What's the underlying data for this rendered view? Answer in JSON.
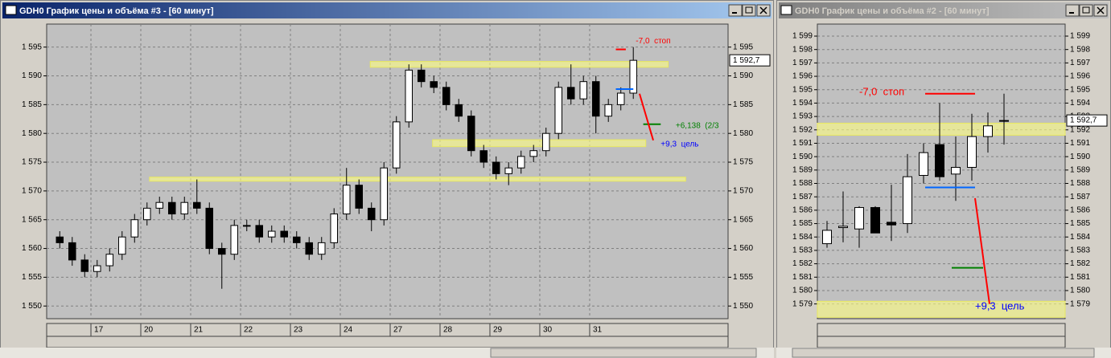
{
  "windows": [
    {
      "title": "GDH0 График цены и объёма #3 - [60 минут]",
      "chart_data": {
        "type": "candlestick",
        "open": [
          1562,
          1561,
          1558,
          1556,
          1557,
          1559,
          1562,
          1565,
          1567,
          1568,
          1566,
          1568,
          1567,
          1560,
          1559,
          1564,
          1564,
          1562,
          1563,
          1562,
          1561,
          1559,
          1561,
          1566,
          1571,
          1567,
          1565,
          1574,
          1582,
          1591,
          1589,
          1588,
          1585,
          1583,
          1577,
          1575,
          1573,
          1574,
          1576,
          1577,
          1580,
          1588,
          1586,
          1589,
          1583,
          1585,
          1587
        ],
        "high": [
          1563,
          1562,
          1559,
          1558,
          1560,
          1563,
          1566,
          1568,
          1569,
          1569,
          1569,
          1572,
          1568,
          1561,
          1565,
          1565,
          1565,
          1564,
          1564,
          1563,
          1562,
          1562,
          1567,
          1574,
          1572,
          1568,
          1575,
          1583,
          1592,
          1592,
          1590,
          1589,
          1586,
          1584,
          1578,
          1576,
          1575,
          1577,
          1578,
          1581,
          1589,
          1592,
          1590,
          1590,
          1586,
          1588,
          1595
        ],
        "low": [
          1560,
          1557,
          1555,
          1555,
          1556,
          1558,
          1561,
          1564,
          1566,
          1565,
          1565,
          1566,
          1559,
          1553,
          1558,
          1563,
          1561,
          1561,
          1561,
          1560,
          1558,
          1558,
          1560,
          1565,
          1566,
          1563,
          1564,
          1573,
          1581,
          1588,
          1587,
          1584,
          1582,
          1576,
          1574,
          1572,
          1571,
          1573,
          1575,
          1576,
          1579,
          1585,
          1585,
          1580,
          1582,
          1584,
          1586
        ],
        "close": [
          1561,
          1558,
          1556,
          1557,
          1559,
          1562,
          1565,
          1567,
          1568,
          1566,
          1568,
          1567,
          1560,
          1559,
          1564,
          1564,
          1562,
          1563,
          1562,
          1561,
          1559,
          1561,
          1566,
          1571,
          1567,
          1565,
          1574,
          1582,
          1591,
          1589,
          1588,
          1585,
          1583,
          1577,
          1575,
          1573,
          1574,
          1576,
          1577,
          1580,
          1588,
          1586,
          1589,
          1583,
          1585,
          1587,
          1592.7
        ],
        "xlim": [
          -0.55,
          54.1
        ],
        "ylim": [
          1547.8,
          1599
        ],
        "xticks": [
          {
            "value": 3,
            "label": "17"
          },
          {
            "value": 7,
            "label": "20"
          },
          {
            "value": 11,
            "label": "21"
          },
          {
            "value": 15,
            "label": "22"
          },
          {
            "value": 19,
            "label": "23"
          },
          {
            "value": 23,
            "label": "24"
          },
          {
            "value": 27,
            "label": "27"
          },
          {
            "value": 31,
            "label": "28"
          },
          {
            "value": 35,
            "label": "29"
          },
          {
            "value": 39,
            "label": "30"
          },
          {
            "value": 43,
            "label": "31"
          }
        ],
        "yticks": [
          {
            "value": 1550,
            "label": "1 550"
          },
          {
            "value": 1555,
            "label": "1 555"
          },
          {
            "value": 1560,
            "label": "1 560"
          },
          {
            "value": 1565,
            "label": "1 565"
          },
          {
            "value": 1570,
            "label": "1 570"
          },
          {
            "value": 1575,
            "label": "1 575"
          },
          {
            "value": 1580,
            "label": "1 580"
          },
          {
            "value": 1585,
            "label": "1 585"
          },
          {
            "value": 1590,
            "label": "1 590"
          },
          {
            "value": 1595,
            "label": "1 595"
          }
        ],
        "grid": true,
        "up_color": "#ffffff",
        "down_color": "#000000",
        "zone_color": "#ffff80",
        "last": {
          "value": 1592.7,
          "label": "1 592,7"
        },
        "zones": [
          {
            "x": [
              25.4,
              49.3
            ],
            "y": [
              1591.5,
              1592.5
            ]
          },
          {
            "x": [
              30.4,
              47.5
            ],
            "y": [
              1577.7,
              1578.9
            ]
          },
          {
            "x": [
              7.7,
              50.7
            ],
            "y": [
              1571.7,
              1572.4
            ]
          }
        ],
        "levels": [
          {
            "x": [
              45.1,
              45.9
            ],
            "y": 1594.6,
            "color": "#ff0000"
          },
          {
            "x": [
              45.1,
              46.5
            ],
            "y": 1587.7,
            "color": "#0066ff"
          },
          {
            "x": [
              47.3,
              48.7
            ],
            "y": 1581.6,
            "color": "#008000"
          }
        ],
        "segments": [
          {
            "x": [
              47.0,
              48.1
            ],
            "y": [
              1586.9,
              1578.8
            ],
            "color": "#ff0000"
          }
        ],
        "annotations": [
          {
            "text": "-7,0  стоп",
            "x": 46.7,
            "y": 1596,
            "color": "#ff0000"
          },
          {
            "text": "+6,138  (2/3",
            "x": 49.9,
            "y": 1581.3,
            "color": "#008000"
          },
          {
            "text": "+9,3  цель",
            "x": 48.7,
            "y": 1578.1,
            "color": "#0000ff"
          }
        ]
      }
    },
    {
      "title": "GDH0 График цены и объёма #2 - [60 минут]",
      "chart_data": {
        "type": "candlestick",
        "open": [
          1583.5,
          1584.7,
          1584.6,
          1586.2,
          1585.1,
          1585,
          1588.6,
          1590.9,
          1588.7,
          1589.2,
          1591.5,
          1592.7
        ],
        "high": [
          1585.2,
          1587.4,
          1586.3,
          1586.3,
          1587.9,
          1590.2,
          1591,
          1594,
          1591.5,
          1593.2,
          1593.3,
          1594.7
        ],
        "low": [
          1583.2,
          1583.6,
          1583.2,
          1584.3,
          1583.7,
          1584.3,
          1588,
          1588.2,
          1586.7,
          1588.2,
          1590.3,
          1590.9
        ],
        "close": [
          1584.5,
          1584.8,
          1586.2,
          1584.3,
          1584.9,
          1588.5,
          1590.3,
          1588.5,
          1589.2,
          1591.5,
          1592.3,
          1592.7
        ],
        "xlim": [
          -0.1,
          15.3
        ],
        "ylim": [
          1577.9,
          1599.9
        ],
        "yticks": [
          {
            "value": 1579,
            "label": "1 579"
          },
          {
            "value": 1580,
            "label": "1 580"
          },
          {
            "value": 1581,
            "label": "1 581"
          },
          {
            "value": 1582,
            "label": "1 582"
          },
          {
            "value": 1583,
            "label": "1 583"
          },
          {
            "value": 1584,
            "label": "1 584"
          },
          {
            "value": 1585,
            "label": "1 585"
          },
          {
            "value": 1586,
            "label": "1 586"
          },
          {
            "value": 1587,
            "label": "1 587"
          },
          {
            "value": 1588,
            "label": "1 588"
          },
          {
            "value": 1589,
            "label": "1 589"
          },
          {
            "value": 1590,
            "label": "1 590"
          },
          {
            "value": 1591,
            "label": "1 591"
          },
          {
            "value": 1592,
            "label": "1 592"
          },
          {
            "value": 1593,
            "label": "1 593"
          },
          {
            "value": 1594,
            "label": "1 594"
          },
          {
            "value": 1595,
            "label": "1 595"
          },
          {
            "value": 1596,
            "label": "1 596"
          },
          {
            "value": 1597,
            "label": "1 597"
          },
          {
            "value": 1598,
            "label": "1 598"
          },
          {
            "value": 1599,
            "label": "1 599"
          }
        ],
        "grid": true,
        "up_color": "#ffffff",
        "down_color": "#000000",
        "zone_color": "#ffff80",
        "last": {
          "value": 1592.7,
          "label": "1 592,7"
        },
        "zones": [
          {
            "x": [
              -0.1,
              15.3
            ],
            "y": [
              1591.6,
              1592.5
            ]
          },
          {
            "x": [
              -0.1,
              15.3
            ],
            "y": [
              1578.0,
              1579.2
            ]
          }
        ],
        "levels": [
          {
            "x": [
              6.6,
              9.7
            ],
            "y": 1594.7,
            "color": "#ff0000"
          },
          {
            "x": [
              6.6,
              9.7
            ],
            "y": 1587.7,
            "color": "#0066ff"
          },
          {
            "x": [
              8.25,
              10.2
            ],
            "y": 1581.7,
            "color": "#008000"
          }
        ],
        "segments": [
          {
            "x": [
              9.7,
              10.6
            ],
            "y": [
              1586.9,
              1579.0
            ],
            "color": "#ff0000"
          }
        ],
        "annotations": [
          {
            "text": "-7,0  стоп",
            "x": 2.5,
            "y": 1594.8,
            "color": "#ff0000"
          },
          {
            "text": "+9,3  цель",
            "x": 9.7,
            "y": 1578.8,
            "color": "#0000ff"
          }
        ]
      }
    }
  ]
}
